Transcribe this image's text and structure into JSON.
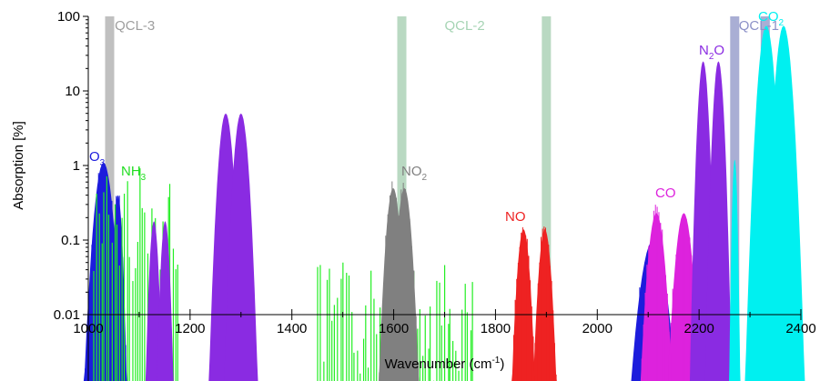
{
  "chart_data": {
    "type": "area",
    "xlabel": "Wavenumber (cm-1)",
    "ylabel": "Absorption [%]",
    "y_scale": "log",
    "xlim": [
      1000,
      2400
    ],
    "ylim": [
      0.01,
      100
    ],
    "x_ticks": [
      1000,
      1200,
      1400,
      1600,
      1800,
      2000,
      2200,
      2400
    ],
    "x_tick_labels": [
      "1000",
      "1200",
      "1400",
      "1600",
      "1800",
      "2000",
      "2200",
      "2400"
    ],
    "y_ticks": [
      0.01,
      0.1,
      1,
      10,
      100
    ],
    "y_tick_labels": [
      "0.01",
      "0.1",
      "1",
      "10",
      "100"
    ],
    "grid": false,
    "laser_lines": [
      {
        "name": "QCL-3",
        "color": "#c0c0c0",
        "text_color": "#9e9e9e",
        "positions": [
          1042
        ]
      },
      {
        "name": "QCL-2",
        "color": "#b9d9c2",
        "text_color": "#a6d4b4",
        "positions": [
          1616,
          1900
        ]
      },
      {
        "name": "QCL-1",
        "color": "#a9aed4",
        "text_color": "#8c91c8",
        "positions": [
          2270,
          2330
        ]
      }
    ],
    "series": [
      {
        "name": "O3",
        "sub": "3",
        "color": "#1c1cdc",
        "bands": [
          {
            "type": "single",
            "center": 1030,
            "peak": 1.1,
            "width": 28,
            "lines": 18
          },
          {
            "type": "single",
            "center": 1058,
            "peak": 0.4,
            "width": 14,
            "lines": 10
          },
          {
            "type": "single",
            "center": 2110,
            "peak": 0.1,
            "width": 40,
            "lines": 16
          }
        ]
      },
      {
        "name": "NH3",
        "sub": "3",
        "color": "#22ee22",
        "bands": [
          {
            "type": "lines",
            "from": 1010,
            "to": 1180,
            "count": 34,
            "peak": 1.0
          },
          {
            "type": "lines",
            "from": 1450,
            "to": 1760,
            "count": 56,
            "peak": 0.05
          }
        ]
      },
      {
        "name": "NO2",
        "sub": "2",
        "color": "#808080",
        "bands": [
          {
            "type": "double",
            "center": 1610,
            "peak": 0.5,
            "width": 22,
            "gap": 22,
            "lines": 22
          }
        ]
      },
      {
        "name": "NO",
        "sub": "",
        "color": "#ee2222",
        "bands": [
          {
            "type": "double",
            "center": 1876,
            "peak": 0.14,
            "width": 20,
            "gap": 42,
            "lines": 28
          }
        ]
      },
      {
        "name": "CO",
        "sub": "",
        "color": "#dd22dd",
        "bands": [
          {
            "type": "double",
            "center": 2143,
            "peak": 0.23,
            "width": 26,
            "gap": 54,
            "lines": 32
          }
        ]
      },
      {
        "name": "N2O",
        "sub": "2",
        "color": "#8a2be2",
        "bands": [
          {
            "type": "double",
            "center": 1140,
            "peak": 0.18,
            "width": 14,
            "gap": 22
          },
          {
            "type": "double",
            "center": 1285,
            "peak": 5.0,
            "width": 22,
            "gap": 30
          },
          {
            "type": "double",
            "center": 2223,
            "peak": 25,
            "width": 16,
            "gap": 30
          },
          {
            "type": "double",
            "center": 2345,
            "peak": 0.03,
            "width": 10,
            "gap": 24
          }
        ]
      },
      {
        "name": "CO2",
        "sub": "2",
        "color": "#00f0f0",
        "bands": [
          {
            "type": "double",
            "center": 2349,
            "peak": 75,
            "width": 24,
            "gap": 34
          },
          {
            "type": "single",
            "center": 2270,
            "peak": 1.2,
            "width": 8
          }
        ]
      }
    ]
  },
  "annotations": {
    "o3": {
      "main": "O",
      "sub": "3"
    },
    "nh3": {
      "main": "NH",
      "sub": "3"
    },
    "no2": {
      "main": "NO",
      "sub": "2"
    },
    "no": {
      "main": "NO",
      "sub": ""
    },
    "co": {
      "main": "CO",
      "sub": ""
    },
    "n2o": {
      "main": "N",
      "sub": "2",
      "tail": "O"
    },
    "co2": {
      "main": "CO",
      "sub": "2"
    }
  },
  "axis_title_parts": {
    "before": "Wavenumber (cm",
    "sup": "-1",
    "after": ")"
  }
}
